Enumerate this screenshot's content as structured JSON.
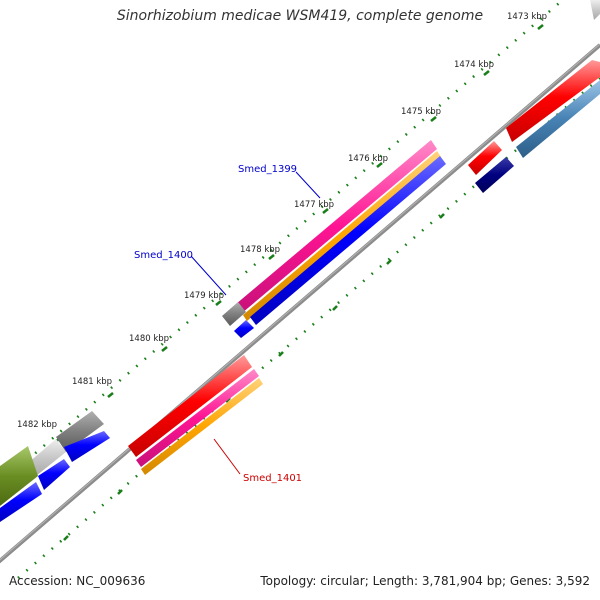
{
  "title": "Sinorhizobium medicae WSM419, complete genome",
  "footer": {
    "accession_label": "Accession:",
    "accession": "NC_009636",
    "topology_label": "Topology:",
    "topology": "circular",
    "length_label": "Length:",
    "length": "3,781,904 bp",
    "genes_label": "Genes:",
    "genes": "3,592"
  },
  "ticks": [
    "1473 kbp",
    "1474 kbp",
    "1475 kbp",
    "1476 kbp",
    "1477 kbp",
    "1478 kbp",
    "1479 kbp",
    "1480 kbp",
    "1481 kbp",
    "1482 kbp"
  ],
  "gene_labels": [
    {
      "text": "Smed_1399",
      "color": "#0000cc"
    },
    {
      "text": "Smed_1400",
      "color": "#0000cc"
    },
    {
      "text": "Smed_1401",
      "color": "#cc0000"
    }
  ],
  "colors": {
    "backbone": "#8c8c8c",
    "tick_dots": "#1a7f1a",
    "forward_cds": "#ff0000",
    "reverse_cds": "#0000ff",
    "rna": "#ff1493",
    "orange_feature": "#ffa500",
    "pseudo": "#7f7f7f",
    "olive": "#6b8e23",
    "steel": "#4682b4",
    "navy": "#000080"
  }
}
